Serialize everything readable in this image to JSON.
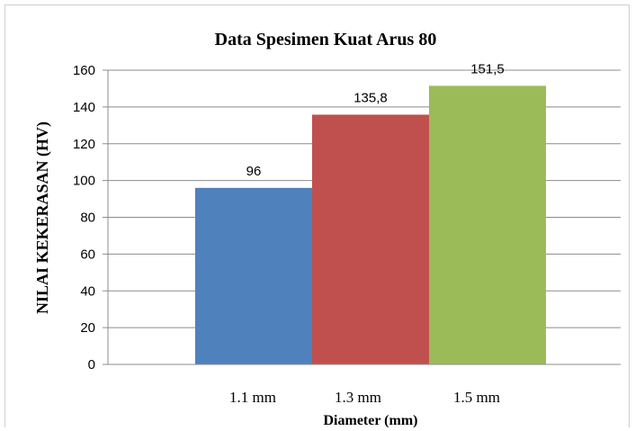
{
  "chart_data": {
    "type": "bar",
    "title": "Data Spesimen Kuat Arus 80",
    "xlabel": "Diameter (mm)",
    "ylabel": "NILAI KEKERASAN (HV)",
    "categories": [
      "1.1 mm",
      "1.3 mm",
      "1.5 mm"
    ],
    "values": [
      96,
      135.8,
      151.5
    ],
    "value_labels": [
      "96",
      "135,8",
      "151,5"
    ],
    "yticks": [
      "0",
      "20",
      "40",
      "60",
      "80",
      "100",
      "120",
      "140",
      "160"
    ],
    "ylim": [
      0,
      160
    ],
    "grid": true,
    "legend": "none",
    "colors": [
      "#4f81bd",
      "#c0504d",
      "#9bbb59"
    ]
  }
}
